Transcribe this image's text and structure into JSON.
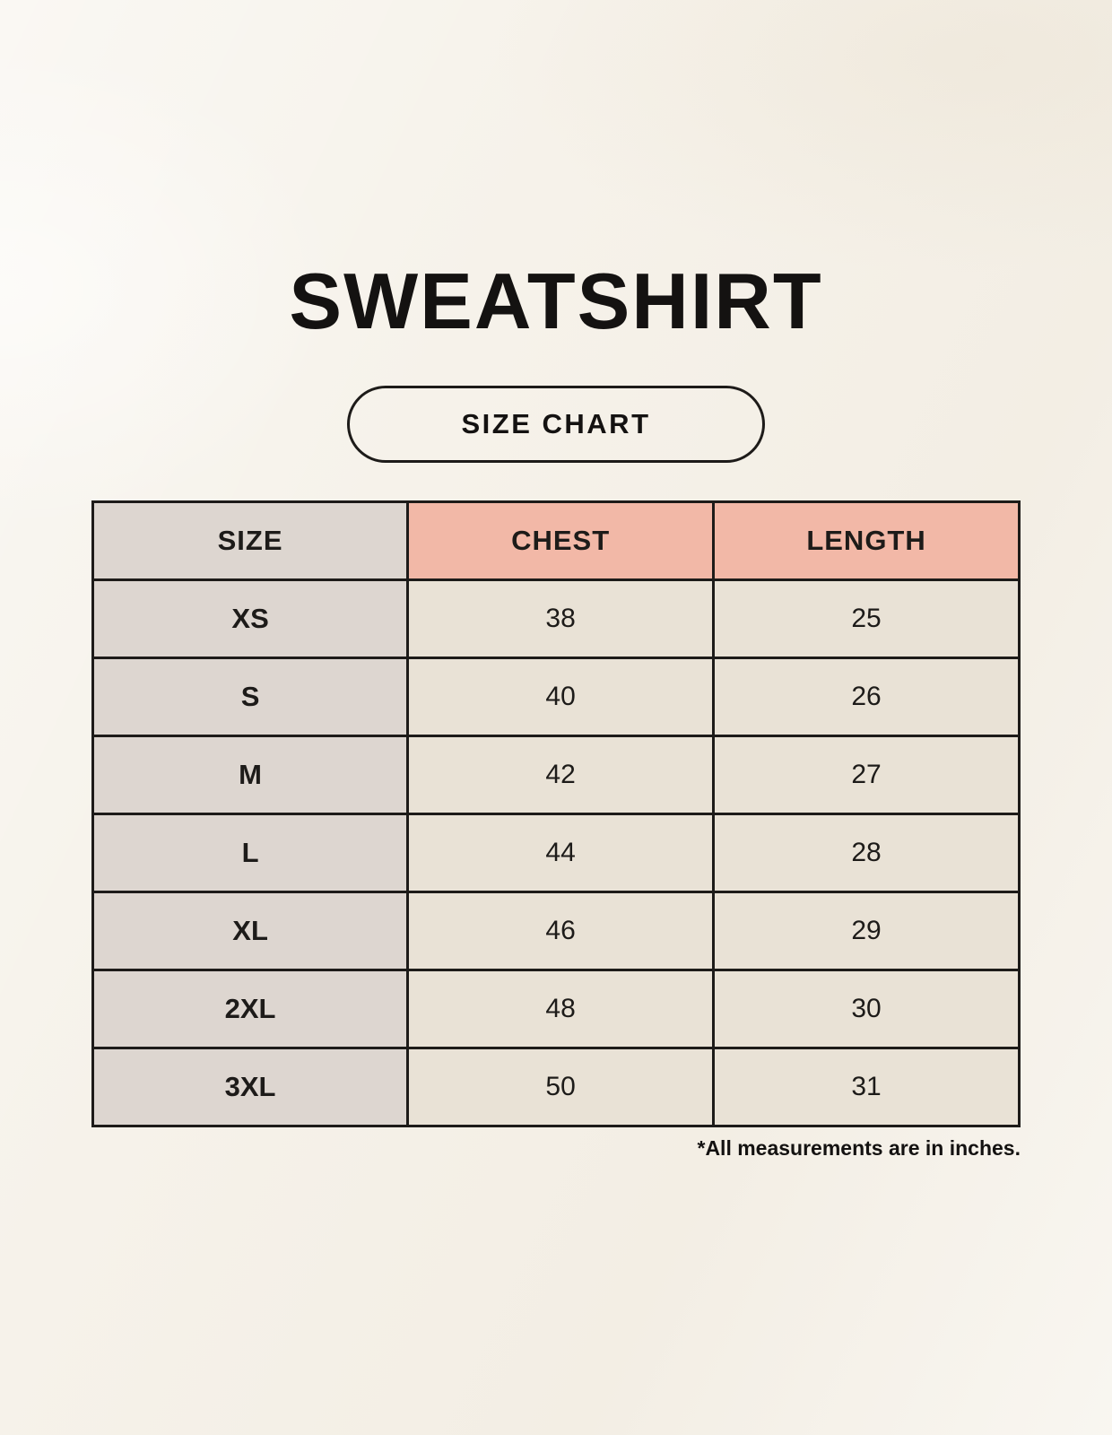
{
  "title": "SWEATSHIRT",
  "size_chart_button_label": "SIZE CHART",
  "footnote": "*All measurements are in inches.",
  "colors": {
    "background": "#f6f2ea",
    "header_size_bg": "#ddd6d0",
    "header_measure_bg": "#f2b8a7",
    "row_label_bg": "#ddd6d0",
    "row_value_bg": "#e9e2d6",
    "border": "#1d1b19",
    "text": "#141211"
  },
  "chart_data": {
    "type": "table",
    "title": "SWEATSHIRT",
    "subtitle": "SIZE CHART",
    "unit_note": "*All measurements are in inches.",
    "columns": [
      "SIZE",
      "CHEST",
      "LENGTH"
    ],
    "rows": [
      [
        "XS",
        "38",
        "25"
      ],
      [
        "S",
        "40",
        "26"
      ],
      [
        "M",
        "42",
        "27"
      ],
      [
        "L",
        "44",
        "28"
      ],
      [
        "XL",
        "46",
        "29"
      ],
      [
        "2XL",
        "48",
        "30"
      ],
      [
        "3XL",
        "50",
        "31"
      ]
    ]
  }
}
